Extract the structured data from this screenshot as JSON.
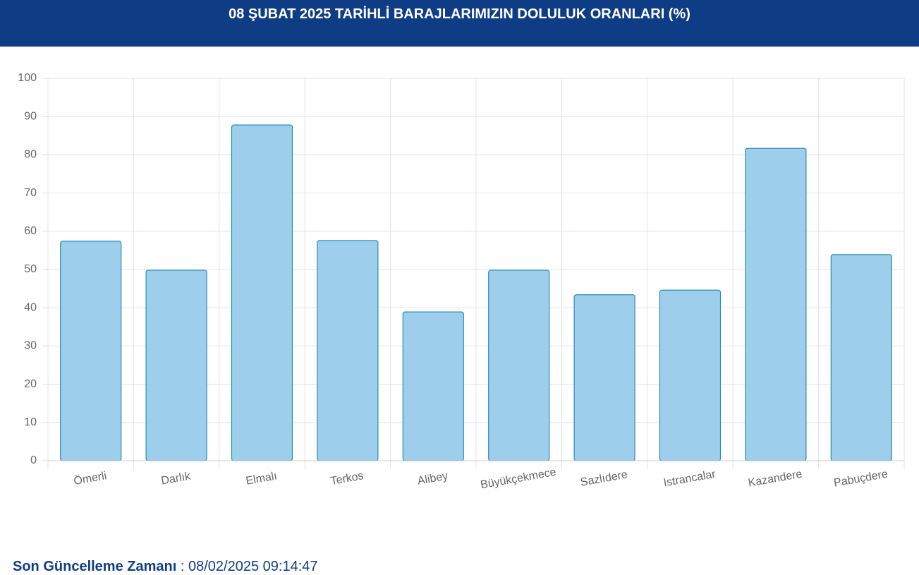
{
  "chart_data": {
    "type": "bar",
    "title": "08 ŞUBAT 2025 TARİHLİ BARAJLARIMIZIN DOLULUK ORANLARI (%)",
    "categories": [
      "Ömerli",
      "Darlık",
      "Elmalı",
      "Terkos",
      "Alibey",
      "Büyükçekmece",
      "Sazlıdere",
      "Istrancalar",
      "Kazandere",
      "Pabuçdere"
    ],
    "values": [
      57.4,
      49.8,
      87.8,
      57.6,
      38.9,
      49.8,
      43.4,
      44.6,
      81.7,
      53.9
    ],
    "color": "#9dcfec",
    "edge_color": "#2a8cb8",
    "ylim": [
      0,
      100
    ],
    "yticks": [
      0,
      10,
      20,
      30,
      40,
      50,
      60,
      70,
      80,
      90,
      100
    ],
    "grid": true
  },
  "footer": {
    "label": "Son Güncelleme Zamanı",
    "separator": ":",
    "value": "08/02/2025 09:14:47"
  }
}
